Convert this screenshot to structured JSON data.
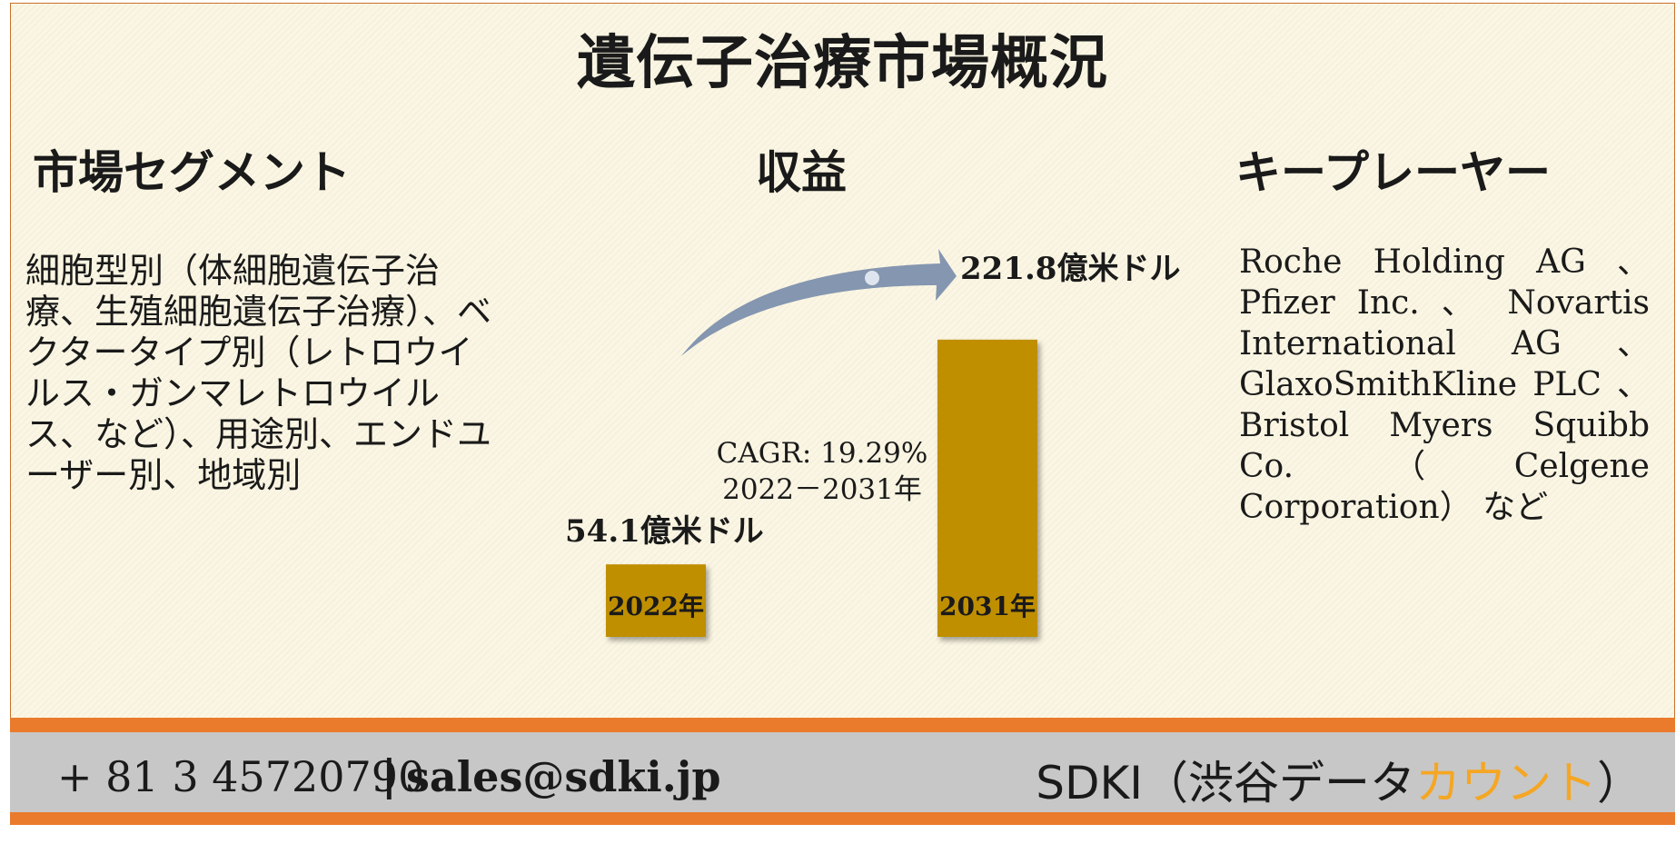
{
  "title": "遺伝子治療市場概況",
  "segment": {
    "heading": "市場セグメント",
    "text": "細胞型別（体細胞遺伝子治療、生殖細胞遺伝子治療）、ベクタータイプ別（レトロウイルス・ガンマレトロウイルス、など）、用途別、エンドユーザー別、地域別"
  },
  "revenue": {
    "heading": "収益",
    "cagr": "CAGR: 19.29%",
    "cagr_period": "2022－2031年"
  },
  "players": {
    "heading": "キープレーヤー",
    "text": "Roche Holding AG 、Pfizer Inc. 、 Novartis International AG 、GlaxoSmithKline PLC 、Bristol Myers Squibb Co. （Celgene Corporation） など"
  },
  "chart_data": {
    "type": "bar",
    "categories": [
      "2022年",
      "2031年"
    ],
    "values": [
      54.1,
      221.8
    ],
    "value_labels": [
      "54.1億米ドル",
      "221.8億米ドル"
    ],
    "unit": "億米ドル",
    "bar_color": "#bf8f00",
    "arrow_color": "#8496b0"
  },
  "footer": {
    "phone": "+ 81 3 45720790",
    "separator": "|",
    "email": "sales@sdki.jp",
    "brand_prefix": "SDKI（渋谷データ",
    "brand_accent": "カウント",
    "brand_suffix": "）",
    "accent_color": "#f5a623",
    "band_color": "#ea7b2c"
  }
}
